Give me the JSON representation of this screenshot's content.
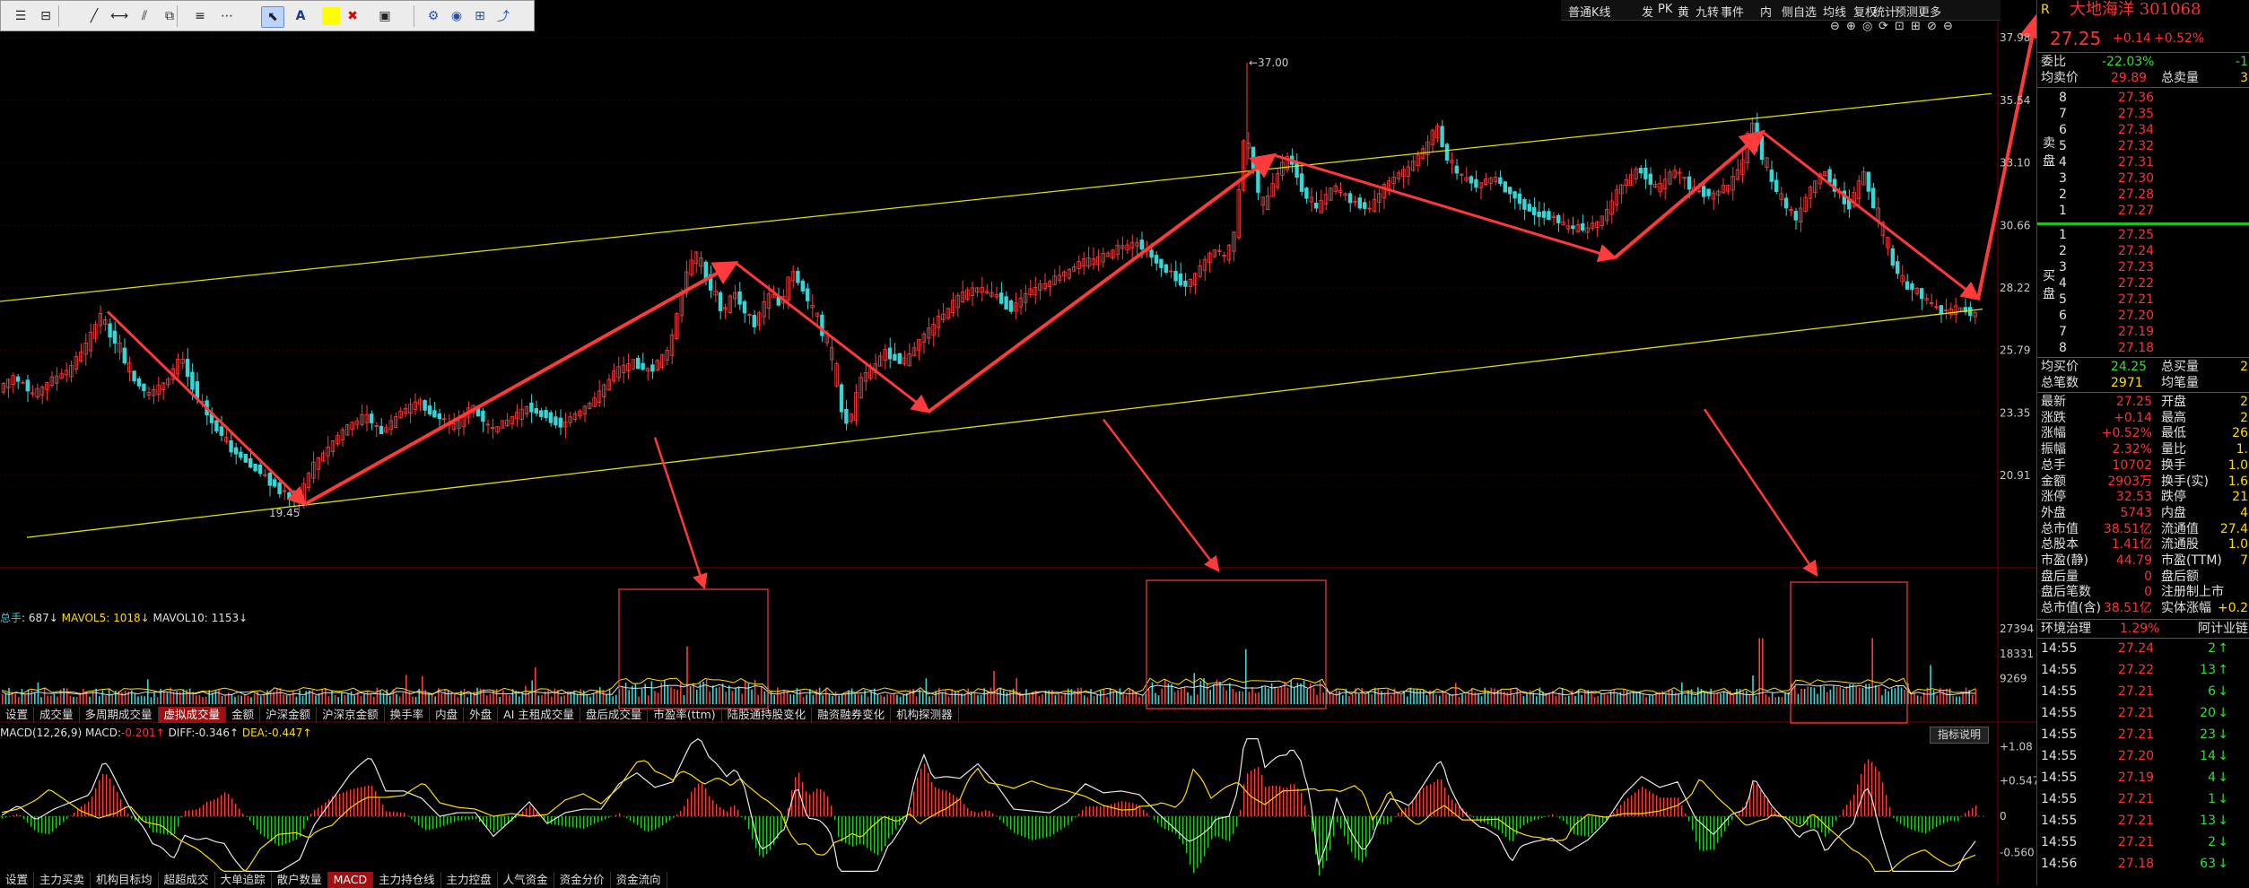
{
  "toolbar": {
    "tools": [
      "list-icon",
      "ruler-icon",
      "line-icon",
      "segment-icon",
      "parallel-icon",
      "fib-icon",
      "level-icon",
      "more-icon",
      "cursor-icon",
      "text-icon",
      "color-icon",
      "delete-icon",
      "save-icon",
      "gear-icon",
      "eye-icon",
      "grid-icon",
      "export-icon"
    ],
    "text_tool": "A",
    "fill_color": "#ffff00"
  },
  "topbar": {
    "items": [
      "普通K线",
      "发",
      "PK",
      "黄",
      "九转",
      "事件",
      "内",
      "侧自选",
      "均线",
      "复权",
      "统计",
      "预测",
      "更多"
    ]
  },
  "stock": {
    "name": "大地海洋",
    "code": "301068",
    "price": "27.25",
    "change": "+0.14",
    "pct": "+0.52%",
    "r_badge": "R"
  },
  "chart_data": {
    "type": "candlestick",
    "price_axis": [
      "37.98",
      "35.54",
      "33.10",
      "30.66",
      "28.22",
      "25.79",
      "23.35",
      "20.91"
    ],
    "price_ylim": [
      18.47,
      37.98
    ],
    "high_label": "37.00",
    "low_label": "19.45",
    "close_path": [
      [
        0,
        24.2
      ],
      [
        20,
        24.8
      ],
      [
        40,
        24.0
      ],
      [
        60,
        24.6
      ],
      [
        80,
        25.0
      ],
      [
        100,
        26.0
      ],
      [
        115,
        27.2
      ],
      [
        130,
        26.2
      ],
      [
        150,
        24.8
      ],
      [
        170,
        24.0
      ],
      [
        190,
        24.6
      ],
      [
        205,
        25.5
      ],
      [
        220,
        24.2
      ],
      [
        240,
        23.0
      ],
      [
        260,
        22.0
      ],
      [
        280,
        21.4
      ],
      [
        300,
        20.8
      ],
      [
        320,
        20.2
      ],
      [
        335,
        19.9
      ],
      [
        350,
        21.2
      ],
      [
        370,
        22.0
      ],
      [
        390,
        22.8
      ],
      [
        410,
        23.2
      ],
      [
        430,
        22.6
      ],
      [
        450,
        23.4
      ],
      [
        470,
        23.8
      ],
      [
        490,
        23.2
      ],
      [
        510,
        22.8
      ],
      [
        530,
        23.6
      ],
      [
        550,
        22.7
      ],
      [
        570,
        23.0
      ],
      [
        590,
        23.6
      ],
      [
        610,
        23.2
      ],
      [
        630,
        22.9
      ],
      [
        650,
        23.4
      ],
      [
        670,
        24.0
      ],
      [
        690,
        25.0
      ],
      [
        710,
        25.3
      ],
      [
        730,
        25.0
      ],
      [
        750,
        25.9
      ],
      [
        760,
        27.5
      ],
      [
        770,
        29.0
      ],
      [
        780,
        29.5
      ],
      [
        790,
        28.6
      ],
      [
        800,
        28.0
      ],
      [
        810,
        27.2
      ],
      [
        820,
        28.1
      ],
      [
        830,
        27.5
      ],
      [
        845,
        26.8
      ],
      [
        860,
        28.0
      ],
      [
        875,
        27.6
      ],
      [
        885,
        29.0
      ],
      [
        900,
        28.0
      ],
      [
        915,
        27.0
      ],
      [
        930,
        25.5
      ],
      [
        940,
        23.6
      ],
      [
        950,
        22.8
      ],
      [
        960,
        24.5
      ],
      [
        975,
        25.0
      ],
      [
        990,
        25.7
      ],
      [
        1010,
        25.3
      ],
      [
        1030,
        26.2
      ],
      [
        1050,
        27.0
      ],
      [
        1070,
        27.8
      ],
      [
        1090,
        28.2
      ],
      [
        1110,
        28.0
      ],
      [
        1130,
        27.4
      ],
      [
        1150,
        28.1
      ],
      [
        1170,
        28.4
      ],
      [
        1190,
        28.8
      ],
      [
        1210,
        29.2
      ],
      [
        1230,
        29.4
      ],
      [
        1250,
        29.8
      ],
      [
        1270,
        30.0
      ],
      [
        1290,
        29.4
      ],
      [
        1310,
        28.7
      ],
      [
        1325,
        28.3
      ],
      [
        1340,
        28.9
      ],
      [
        1355,
        29.7
      ],
      [
        1370,
        29.4
      ],
      [
        1380,
        30.5
      ],
      [
        1390,
        34.0
      ],
      [
        1400,
        33.1
      ],
      [
        1410,
        31.2
      ],
      [
        1425,
        32.5
      ],
      [
        1440,
        33.4
      ],
      [
        1455,
        32.0
      ],
      [
        1470,
        31.3
      ],
      [
        1490,
        32.2
      ],
      [
        1510,
        31.6
      ],
      [
        1530,
        31.3
      ],
      [
        1545,
        32.1
      ],
      [
        1560,
        32.6
      ],
      [
        1575,
        32.9
      ],
      [
        1590,
        33.6
      ],
      [
        1605,
        34.5
      ],
      [
        1615,
        33.3
      ],
      [
        1630,
        32.6
      ],
      [
        1650,
        32.2
      ],
      [
        1670,
        32.5
      ],
      [
        1690,
        31.8
      ],
      [
        1710,
        31.2
      ],
      [
        1730,
        31.0
      ],
      [
        1750,
        30.6
      ],
      [
        1770,
        30.5
      ],
      [
        1790,
        30.9
      ],
      [
        1810,
        32.2
      ],
      [
        1830,
        32.8
      ],
      [
        1850,
        32.1
      ],
      [
        1870,
        32.8
      ],
      [
        1890,
        32.1
      ],
      [
        1910,
        31.8
      ],
      [
        1930,
        32.2
      ],
      [
        1945,
        33.0
      ],
      [
        1955,
        34.8
      ],
      [
        1965,
        33.6
      ],
      [
        1975,
        32.6
      ],
      [
        1990,
        31.6
      ],
      [
        2005,
        30.9
      ],
      [
        2020,
        32.0
      ],
      [
        2035,
        32.8
      ],
      [
        2050,
        32.0
      ],
      [
        2065,
        31.4
      ],
      [
        2080,
        32.8
      ],
      [
        2095,
        31.0
      ],
      [
        2110,
        29.5
      ],
      [
        2125,
        28.4
      ],
      [
        2140,
        28.1
      ],
      [
        2155,
        27.5
      ],
      [
        2170,
        27.3
      ],
      [
        2185,
        27.4
      ],
      [
        2200,
        27.25
      ]
    ],
    "volume_axis": [
      "27394",
      "18331",
      "9269"
    ],
    "volume_ylim": [
      0,
      31000
    ],
    "macd_axis": [
      "+1.08",
      "+0.547",
      "0",
      "-0.560"
    ],
    "macd_ylim": [
      -0.9,
      1.25
    ],
    "trend_upper": [
      [
        0,
        27.7
      ],
      [
        2220,
        35.8
      ]
    ],
    "trend_lower": [
      [
        30,
        18.5
      ],
      [
        2210,
        27.4
      ]
    ],
    "zigzag": [
      [
        120,
        27.3
      ],
      [
        340,
        19.8
      ],
      [
        820,
        29.2
      ],
      [
        1035,
        23.4
      ],
      [
        1420,
        33.4
      ],
      [
        1800,
        29.4
      ],
      [
        1965,
        34.3
      ],
      [
        2205,
        27.8
      ],
      [
        2270,
        38.8
      ]
    ],
    "callouts": [
      [
        730,
        22.4,
        785,
        655
      ],
      [
        1230,
        23.1,
        1358,
        636
      ],
      [
        1900,
        23.5,
        2025,
        641
      ]
    ],
    "boxes": [
      [
        690,
        657,
        856,
        790
      ],
      [
        1278,
        647,
        1478,
        790
      ],
      [
        1996,
        649,
        2126,
        806
      ]
    ]
  },
  "volume_bar": {
    "label": "总手",
    "value": "687",
    "mavol5_label": "MAVOL5",
    "mavol5": "1018",
    "mavol10_label": "MAVOL10",
    "mavol10": "1153",
    "arrow": "↓"
  },
  "tabs1": [
    "设置",
    "成交量",
    "多周期成交量",
    "虚拟成交量",
    "金额",
    "沪深金额",
    "沪深京金额",
    "换手率",
    "内盘",
    "外盘",
    "AI 主租成交量",
    "盘后成交量",
    "市盈率(ttm)",
    "陆股通持股变化",
    "融资融券变化",
    "机构探测器"
  ],
  "tabs1_active": "虚拟成交量",
  "macd_bar": {
    "name": "MACD(12,26,9)",
    "macd_label": "MACD:",
    "macd": "-0.201",
    "diff_label": "DIFF:",
    "diff": "-0.346",
    "dea_label": "DEA:",
    "dea": "-0.447",
    "up": "↑"
  },
  "indicator_help": "指标说明",
  "tabs2": [
    "设置",
    "主力买卖",
    "机构目标均",
    "超超成交",
    "大单追踪",
    "散户数量",
    "MACD",
    "主力持仓线",
    "主力控盘",
    "人气资金",
    "资金分价",
    "资金流向"
  ],
  "tabs2_active": "MACD",
  "panel": {
    "weibi_label": "委比",
    "weibi": "-22.03%",
    "weicha": "-1",
    "junmai_label": "均卖价",
    "junmai": "29.89",
    "zongmai_label": "总卖量",
    "zongmai": "3",
    "sell_label": "卖盘",
    "sells": [
      [
        "8",
        "27.36"
      ],
      [
        "7",
        "27.35"
      ],
      [
        "6",
        "27.34"
      ],
      [
        "5",
        "27.32"
      ],
      [
        "4",
        "27.31"
      ],
      [
        "3",
        "27.30"
      ],
      [
        "2",
        "27.28"
      ],
      [
        "1",
        "27.27"
      ]
    ],
    "buy_label": "买盘",
    "buys": [
      [
        "1",
        "27.25"
      ],
      [
        "2",
        "27.24"
      ],
      [
        "3",
        "27.23"
      ],
      [
        "4",
        "27.22"
      ],
      [
        "5",
        "27.21"
      ],
      [
        "6",
        "27.20"
      ],
      [
        "7",
        "27.19"
      ],
      [
        "8",
        "27.18"
      ]
    ],
    "junmai2_label": "均买价",
    "junmai2": "24.25",
    "zongmai2_label": "总买量",
    "zongmai2": "2",
    "bishu_label": "总笔数",
    "bishu": "2971",
    "bizongliang_label": "均笔量",
    "bizongliang": "",
    "stats": [
      [
        "最新",
        "27.25",
        "开盘",
        "2"
      ],
      [
        "涨跌",
        "+0.14",
        "最高",
        "2"
      ],
      [
        "涨幅",
        "+0.52%",
        "最低",
        "26"
      ],
      [
        "振幅",
        "2.32%",
        "量比",
        "1."
      ],
      [
        "总手",
        "10702",
        "换手",
        "1.0"
      ],
      [
        "金额",
        "2903万",
        "换手(实)",
        "1.6"
      ],
      [
        "涨停",
        "32.53",
        "跌停",
        "21"
      ],
      [
        "外盘",
        "5743",
        "内盘",
        "4"
      ],
      [
        "总市值",
        "38.51亿",
        "流通值",
        "27.4"
      ],
      [
        "总股本",
        "1.41亿",
        "流通股",
        "1.0"
      ],
      [
        "市盈(静)",
        "44.79",
        "市盈(TTM)",
        "7"
      ],
      [
        "盘后量",
        "0",
        "盘后额",
        ""
      ],
      [
        "盘后笔数",
        "0",
        "注册制上市",
        ""
      ],
      [
        "总市值(含)",
        "38.51亿",
        "实体涨幅",
        "+0.2"
      ]
    ],
    "env_label": "环境治理",
    "env_pct": "1.29%",
    "env_tail": "阿计业链",
    "ticks": [
      [
        "14:55",
        "27.24",
        "2",
        "↑"
      ],
      [
        "14:55",
        "27.22",
        "13",
        "↑"
      ],
      [
        "14:55",
        "27.21",
        "6",
        "↓"
      ],
      [
        "14:55",
        "27.21",
        "20",
        "↓"
      ],
      [
        "14:55",
        "27.21",
        "23",
        "↓"
      ],
      [
        "14:55",
        "27.20",
        "14",
        "↓"
      ],
      [
        "14:55",
        "27.19",
        "4",
        "↓"
      ],
      [
        "14:55",
        "27.21",
        "1",
        "↓"
      ],
      [
        "14:55",
        "27.21",
        "13",
        "↓"
      ],
      [
        "14:55",
        "27.21",
        "2",
        "↓"
      ],
      [
        "14:56",
        "27.18",
        "63",
        "↓"
      ]
    ]
  }
}
